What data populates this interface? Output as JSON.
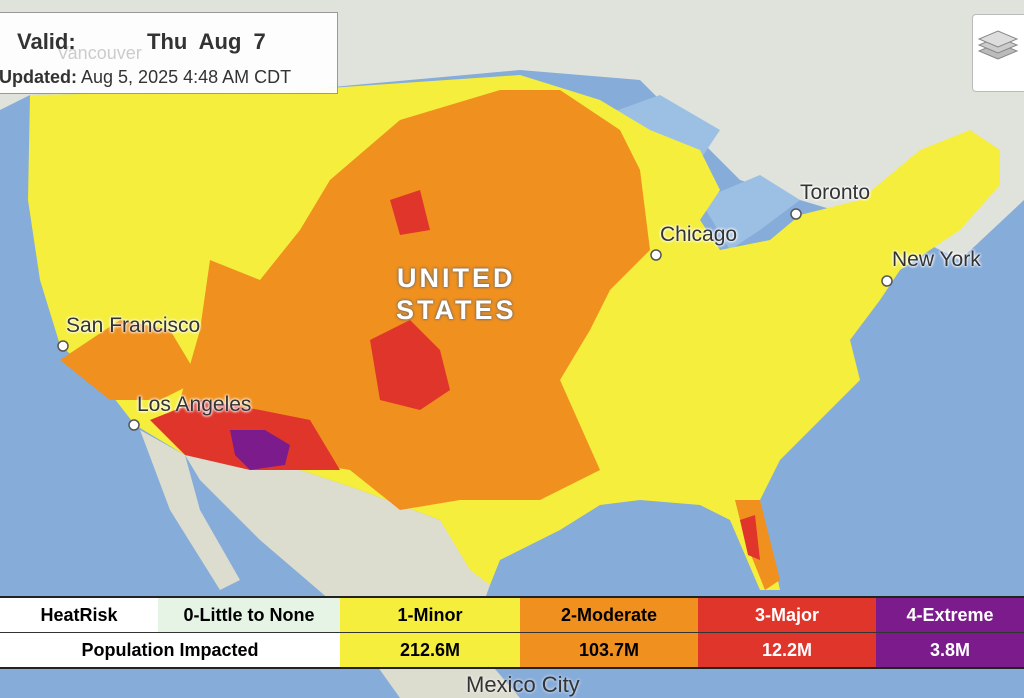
{
  "info": {
    "valid_label": "Valid:",
    "valid_date": "Thu Aug 7",
    "updated_label": "Updated:",
    "updated_value": "Aug 5, 2025 4:48 AM CDT"
  },
  "map": {
    "country_label_1": "UNITED",
    "country_label_2": "STATES",
    "cities": [
      {
        "name": "Vancouver"
      },
      {
        "name": "San Francisco"
      },
      {
        "name": "Los Angeles"
      },
      {
        "name": "Chicago"
      },
      {
        "name": "Toronto"
      },
      {
        "name": "New York"
      },
      {
        "name": "Mexico City"
      }
    ],
    "layers_icon": "layers-icon"
  },
  "legend": {
    "header": "HeatRisk",
    "row_label": "Population Impacted",
    "levels": [
      {
        "label": "0-Little to None",
        "population": "",
        "color": "#e6f4e6"
      },
      {
        "label": "1-Minor",
        "population": "212.6M",
        "color": "#f5ee3c"
      },
      {
        "label": "2-Moderate",
        "population": "103.7M",
        "color": "#f0901e"
      },
      {
        "label": "3-Major",
        "population": "12.2M",
        "color": "#e0352a"
      },
      {
        "label": "4-Extreme",
        "population": "3.8M",
        "color": "#7c1c8c"
      }
    ]
  }
}
